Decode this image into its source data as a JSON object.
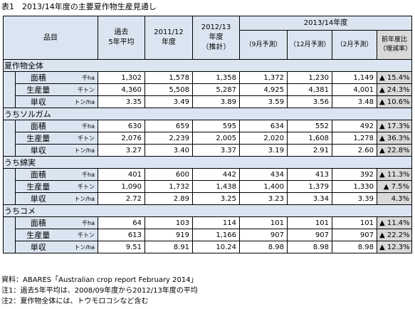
{
  "title": "表1　2013/14年度の主要夏作物生産見通し",
  "header": {
    "item": "品目",
    "past5_line1": "過去",
    "past5_line2": "5年平均",
    "y1112_line1": "2011/12",
    "y1112_line2": "年度",
    "y1213_line1": "2012/13",
    "y1213_line2": "年度",
    "y1213_line3": "（推計）",
    "y1314": "2013/14年度",
    "sep": "（9月予測）",
    "dec": "（12月予測）",
    "feb": "（2月予測）",
    "yoy_line1": "前年度比",
    "yoy_line2": "（増減率）"
  },
  "groups": [
    {
      "name": "夏作物全体",
      "rows": [
        {
          "metric": "面積",
          "unit": "千ha",
          "values": [
            "1,302",
            "1,578",
            "1,358",
            "1,372",
            "1,230",
            "1,149"
          ],
          "yoy": "▲ 15.4%"
        },
        {
          "metric": "生産量",
          "unit": "千トン",
          "values": [
            "4,360",
            "5,508",
            "5,287",
            "4,925",
            "4,381",
            "4,001"
          ],
          "yoy": "▲ 24.3%"
        },
        {
          "metric": "単収",
          "unit": "トン/ha",
          "values": [
            "3.35",
            "3.49",
            "3.89",
            "3.59",
            "3.56",
            "3.48"
          ],
          "yoy": "▲ 10.6%"
        }
      ]
    },
    {
      "name": "うちソルガム",
      "rows": [
        {
          "metric": "面積",
          "unit": "千ha",
          "values": [
            "630",
            "659",
            "595",
            "634",
            "552",
            "492"
          ],
          "yoy": "▲ 17.3%"
        },
        {
          "metric": "生産量",
          "unit": "千トン",
          "values": [
            "2,076",
            "2,239",
            "2,005",
            "2,020",
            "1,608",
            "1,278"
          ],
          "yoy": "▲ 36.3%"
        },
        {
          "metric": "単収",
          "unit": "トン/ha",
          "values": [
            "3.27",
            "3.40",
            "3.37",
            "3.19",
            "2.91",
            "2.60"
          ],
          "yoy": "▲ 22.8%"
        }
      ]
    },
    {
      "name": "うち綿実",
      "rows": [
        {
          "metric": "面積",
          "unit": "千ha",
          "values": [
            "401",
            "600",
            "442",
            "434",
            "413",
            "392"
          ],
          "yoy": "▲ 11.3%"
        },
        {
          "metric": "生産量",
          "unit": "千トン",
          "values": [
            "1,090",
            "1,732",
            "1,438",
            "1,400",
            "1,379",
            "1,330"
          ],
          "yoy": "▲ 7.5%"
        },
        {
          "metric": "単収",
          "unit": "トン/ha",
          "values": [
            "2.72",
            "2.89",
            "3.25",
            "3.23",
            "3.34",
            "3.39"
          ],
          "yoy": "4.3%"
        }
      ]
    },
    {
      "name": "うちコメ",
      "rows": [
        {
          "metric": "面積",
          "unit": "千ha",
          "values": [
            "64",
            "103",
            "114",
            "101",
            "101",
            "101"
          ],
          "yoy": "▲ 11.4%"
        },
        {
          "metric": "生産量",
          "unit": "千トン",
          "values": [
            "613",
            "919",
            "1,166",
            "907",
            "907",
            "907"
          ],
          "yoy": "▲ 22.2%"
        },
        {
          "metric": "単収",
          "unit": "トン/ha",
          "values": [
            "9.51",
            "8.91",
            "10.24",
            "8.98",
            "8.98",
            "8.98"
          ],
          "yoy": "▲ 12.3%"
        }
      ]
    }
  ],
  "notes": [
    "資料：ABARES「Australian crop report February 2014」",
    "注1：過去5年平均は、2008/09年度から2012/13年度の平均",
    "注2：夏作物全体には、トウモロコシなど含む"
  ]
}
